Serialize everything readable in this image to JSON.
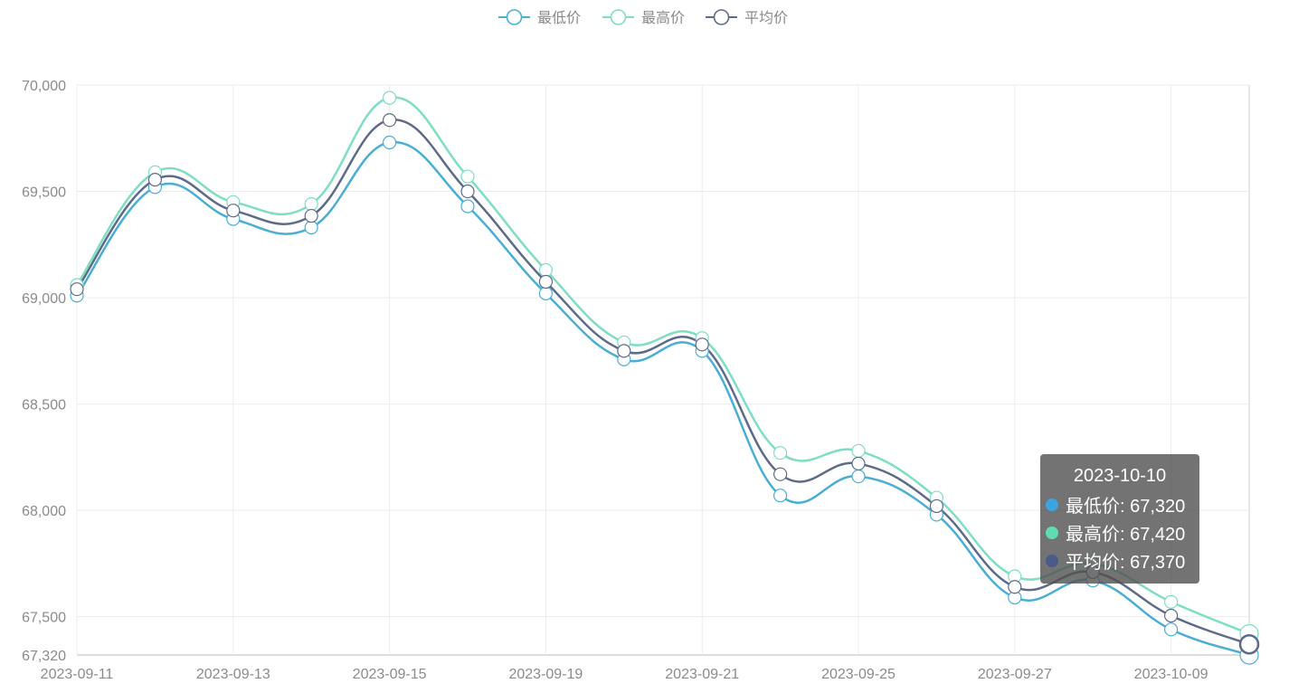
{
  "chart_data": {
    "type": "line",
    "x": [
      "2023-09-11",
      "2023-09-12",
      "2023-09-13",
      "2023-09-14",
      "2023-09-15",
      "2023-09-18",
      "2023-09-19",
      "2023-09-20",
      "2023-09-21",
      "2023-09-22",
      "2023-09-25",
      "2023-09-26",
      "2023-09-27",
      "2023-09-28",
      "2023-10-09",
      "2023-10-10"
    ],
    "x_tick_labels": [
      "2023-09-11",
      "2023-09-13",
      "2023-09-15",
      "2023-09-19",
      "2023-09-21",
      "2023-09-25",
      "2023-09-27",
      "2023-10-09"
    ],
    "y_tick_labels": [
      "70,000",
      "69,500",
      "69,000",
      "68,500",
      "68,000",
      "67,500",
      "67,320"
    ],
    "ylim": [
      67320,
      70000
    ],
    "series": [
      {
        "name": "最低价",
        "color": "#4aaed4",
        "values": [
          69010,
          69520,
          69370,
          69330,
          69730,
          69430,
          69020,
          68710,
          68750,
          68070,
          68160,
          67980,
          67590,
          67670,
          67440,
          67320
        ]
      },
      {
        "name": "最高价",
        "color": "#7ddec3",
        "values": [
          69060,
          69590,
          69450,
          69440,
          69940,
          69570,
          69130,
          68790,
          68810,
          68270,
          68280,
          68060,
          67690,
          67750,
          67570,
          67420
        ]
      },
      {
        "name": "平均价",
        "color": "#5e6a88",
        "values": [
          69040,
          69555,
          69410,
          69385,
          69835,
          69500,
          69075,
          68750,
          68780,
          68170,
          68220,
          68020,
          67640,
          67710,
          67505,
          67370
        ]
      }
    ],
    "legend": "top-center",
    "grid": true,
    "tooltip": {
      "title": "2023-10-10",
      "rows": [
        {
          "label": "最低价: 67,320",
          "color": "#3ba5e0"
        },
        {
          "label": "最高价: 67,420",
          "color": "#5fdcb3"
        },
        {
          "label": "平均价: 67,370",
          "color": "#4c5a8a"
        }
      ]
    }
  }
}
